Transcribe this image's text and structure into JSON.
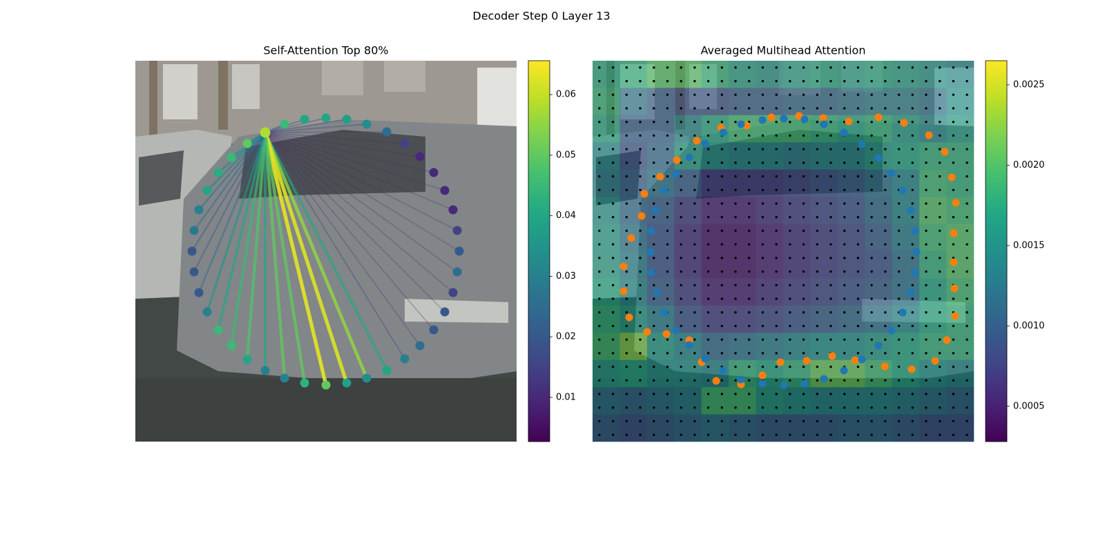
{
  "title": "Decoder Step 0 Layer 13",
  "chart_data": [
    {
      "type": "scatter",
      "title": "Self-Attention Top 80%",
      "colormap": "viridis",
      "xlim": [
        0,
        552
      ],
      "ylim": [
        552,
        0
      ],
      "x": [
        188,
        216,
        245,
        276,
        306,
        335,
        364,
        390,
        412,
        432,
        448,
        460,
        466,
        469,
        466,
        460,
        448,
        432,
        412,
        390,
        364,
        335,
        306,
        276,
        245,
        216,
        188,
        162,
        139,
        120,
        104,
        92,
        85,
        82,
        85,
        92,
        104,
        120,
        139,
        162
      ],
      "y": [
        104,
        92,
        85,
        83,
        85,
        92,
        103,
        120,
        139,
        162,
        188,
        216,
        246,
        276,
        306,
        336,
        364,
        390,
        413,
        432,
        449,
        460,
        467,
        470,
        467,
        460,
        449,
        433,
        413,
        390,
        364,
        336,
        306,
        276,
        246,
        216,
        188,
        162,
        140,
        120
      ],
      "values": [
        0.058,
        0.045,
        0.04,
        0.04,
        0.038,
        0.033,
        0.025,
        0.015,
        0.01,
        0.01,
        0.01,
        0.01,
        0.015,
        0.02,
        0.025,
        0.015,
        0.02,
        0.02,
        0.025,
        0.03,
        0.04,
        0.033,
        0.038,
        0.05,
        0.043,
        0.03,
        0.03,
        0.04,
        0.045,
        0.045,
        0.03,
        0.02,
        0.02,
        0.02,
        0.028,
        0.03,
        0.04,
        0.042,
        0.045,
        0.05
      ],
      "weights": [
        0.02,
        0.02,
        0.02,
        0.015,
        0.015,
        0.015,
        0.01,
        0.01,
        0.01,
        0.01,
        0.01,
        0.008,
        0.008,
        0.008,
        0.008,
        0.008,
        0.008,
        0.01,
        0.01,
        0.015,
        0.04,
        0.055,
        0.062,
        0.063,
        0.05,
        0.05,
        0.04,
        0.048,
        0.045,
        0.04,
        0.035,
        0.025,
        0.02,
        0.02,
        0.025,
        0.025,
        0.03,
        0.03,
        0.035,
        0.03
      ],
      "clim": [
        0.0027,
        0.0656
      ],
      "cticks": [
        0.01,
        0.02,
        0.03,
        0.04,
        0.05,
        0.06
      ]
    },
    {
      "type": "heatmap",
      "title": "Averaged Multihead Attention",
      "colormap": "viridis",
      "xlim": [
        0,
        552
      ],
      "ylim": [
        552,
        0
      ],
      "z": [
        [
          0.0017,
          0.0018,
          0.002,
          0.002,
          0.0018,
          0.0016,
          0.0015,
          0.0016,
          0.0017,
          0.0016,
          0.0017,
          0.0016,
          0.0015,
          0.0014
        ],
        [
          0.0018,
          0.0012,
          0.001,
          0.0009,
          0.0009,
          0.001,
          0.001,
          0.0011,
          0.0011,
          0.0012,
          0.0013,
          0.0013,
          0.0012,
          0.0015
        ],
        [
          0.0017,
          0.001,
          0.001,
          0.0014,
          0.0017,
          0.0019,
          0.0019,
          0.0019,
          0.0018,
          0.0017,
          0.0018,
          0.0016,
          0.0014,
          0.0016
        ],
        [
          0.0014,
          0.0009,
          0.0011,
          0.0016,
          0.0015,
          0.0014,
          0.0014,
          0.0013,
          0.0014,
          0.0014,
          0.0016,
          0.0017,
          0.0018,
          0.0018
        ],
        [
          0.0013,
          0.001,
          0.0012,
          0.001,
          0.0007,
          0.0007,
          0.0007,
          0.0008,
          0.0009,
          0.001,
          0.0012,
          0.0014,
          0.0019,
          0.0018
        ],
        [
          0.0015,
          0.0011,
          0.001,
          0.0007,
          0.0005,
          0.0005,
          0.0006,
          0.0007,
          0.0008,
          0.0009,
          0.0011,
          0.0014,
          0.002,
          0.0019
        ],
        [
          0.0016,
          0.0012,
          0.0009,
          0.0006,
          0.0004,
          0.0004,
          0.0005,
          0.0006,
          0.0007,
          0.0008,
          0.001,
          0.0013,
          0.0019,
          0.002
        ],
        [
          0.0016,
          0.0013,
          0.0009,
          0.0006,
          0.0004,
          0.0004,
          0.0005,
          0.0006,
          0.0007,
          0.0008,
          0.0009,
          0.0012,
          0.0018,
          0.002
        ],
        [
          0.0017,
          0.0014,
          0.001,
          0.0007,
          0.0005,
          0.0005,
          0.0006,
          0.0007,
          0.0008,
          0.0009,
          0.001,
          0.0012,
          0.0017,
          0.0019
        ],
        [
          0.0018,
          0.0016,
          0.0013,
          0.0009,
          0.0007,
          0.0007,
          0.0008,
          0.0009,
          0.001,
          0.0011,
          0.0012,
          0.0014,
          0.0017,
          0.0018
        ],
        [
          0.0019,
          0.0022,
          0.0016,
          0.0014,
          0.0011,
          0.0012,
          0.0013,
          0.0014,
          0.0015,
          0.0015,
          0.0016,
          0.0017,
          0.0018,
          0.0018
        ],
        [
          0.0016,
          0.0017,
          0.0015,
          0.0015,
          0.0014,
          0.0018,
          0.0017,
          0.0018,
          0.0021,
          0.0021,
          0.0019,
          0.0017,
          0.0015,
          0.0014
        ],
        [
          0.0012,
          0.0011,
          0.0012,
          0.0013,
          0.0019,
          0.0019,
          0.0016,
          0.0015,
          0.0014,
          0.0014,
          0.0014,
          0.0013,
          0.0012,
          0.0011
        ],
        [
          0.001,
          0.0009,
          0.001,
          0.0011,
          0.0012,
          0.0011,
          0.001,
          0.001,
          0.001,
          0.0011,
          0.0011,
          0.001,
          0.0009,
          0.0009
        ]
      ],
      "series": [
        {
          "color": "#ff7f0e",
          "x": [
            259,
            299,
            334,
            371,
            414,
            451,
            487,
            510,
            520,
            526,
            523,
            523,
            524,
            525,
            513,
            496,
            462,
            423,
            380,
            347,
            310,
            272,
            246,
            215,
            179,
            158,
            140,
            107,
            79,
            53,
            45,
            45,
            56,
            71,
            75,
            98,
            122,
            151,
            186,
            223
          ],
          "y": [
            82,
            80,
            83,
            88,
            82,
            90,
            108,
            132,
            169,
            206,
            250,
            292,
            330,
            370,
            405,
            435,
            447,
            443,
            434,
            428,
            435,
            437,
            456,
            469,
            464,
            437,
            405,
            396,
            393,
            372,
            334,
            298,
            257,
            225,
            193,
            168,
            144,
            116,
            97,
            94
          ]
        },
        {
          "color": "#1f77b4",
          "x": [
            246,
            277,
            307,
            335,
            364,
            390,
            414,
            433,
            449,
            461,
            467,
            469,
            467,
            461,
            449,
            433,
            414,
            390,
            364,
            335,
            307,
            277,
            246,
            215,
            189,
            163,
            140,
            121,
            104,
            93,
            85,
            84,
            85,
            91,
            104,
            121,
            140,
            163,
            189,
            215
          ],
          "y": [
            86,
            84,
            85,
            92,
            104,
            121,
            141,
            163,
            188,
            217,
            247,
            277,
            307,
            336,
            365,
            391,
            413,
            433,
            449,
            461,
            468,
            470,
            468,
            462,
            449,
            432,
            412,
            391,
            365,
            336,
            307,
            277,
            247,
            217,
            188,
            164,
            140,
            120,
            104,
            92
          ]
        }
      ],
      "clim": [
        0.00028,
        0.00265
      ],
      "cticks": [
        0.0005,
        {
          "value": 0.001,
          "label": "0.0010"
        },
        0.0015,
        {
          "value": 0.002,
          "label": "0.0020"
        },
        0.0025
      ]
    }
  ]
}
